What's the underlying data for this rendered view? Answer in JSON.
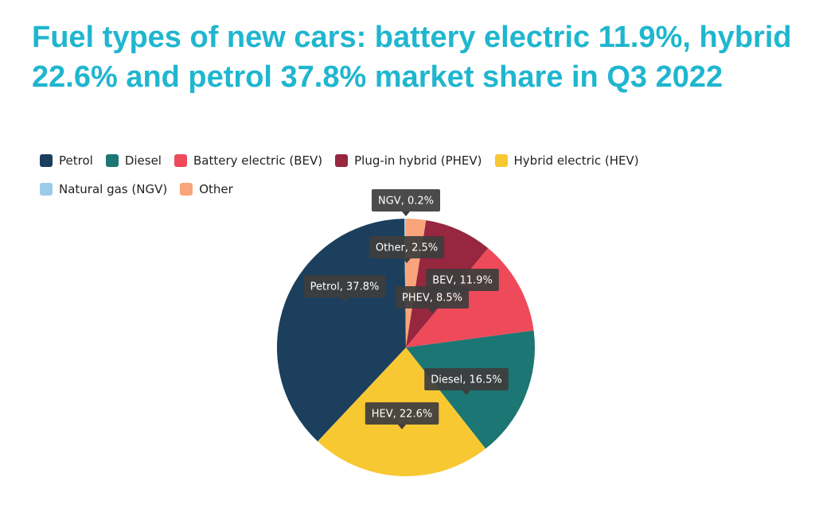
{
  "title": "Fuel types of new cars: battery electric 11.9%, hybrid 22.6% and petrol 37.8% market share in Q3 2022",
  "chart_data": {
    "type": "pie",
    "legend_position": "top-left",
    "series": [
      {
        "name": "Petrol",
        "label": "Petrol, 37.8%",
        "value": 37.8,
        "color": "#1c3f5e"
      },
      {
        "name": "Diesel",
        "label": "Diesel, 16.5%",
        "value": 16.5,
        "color": "#1c7673"
      },
      {
        "name": "Battery electric (BEV)",
        "label": "BEV, 11.9%",
        "value": 11.9,
        "color": "#ee4a5a"
      },
      {
        "name": "Plug-in hybrid (PHEV)",
        "label": "PHEV, 8.5%",
        "value": 8.5,
        "color": "#97263f"
      },
      {
        "name": "Hybrid electric (HEV)",
        "label": "HEV, 22.6%",
        "value": 22.6,
        "color": "#f8c832"
      },
      {
        "name": "Natural gas (NGV)",
        "label": "NGV, 0.2%",
        "value": 0.2,
        "color": "#9ccbe8"
      },
      {
        "name": "Other",
        "label": "Other, 2.5%",
        "value": 2.5,
        "color": "#f9a47b"
      }
    ],
    "clockwise_order": [
      "Other",
      "PHEV",
      "BEV",
      "Diesel",
      "HEV",
      "Petrol",
      "NGV"
    ]
  }
}
